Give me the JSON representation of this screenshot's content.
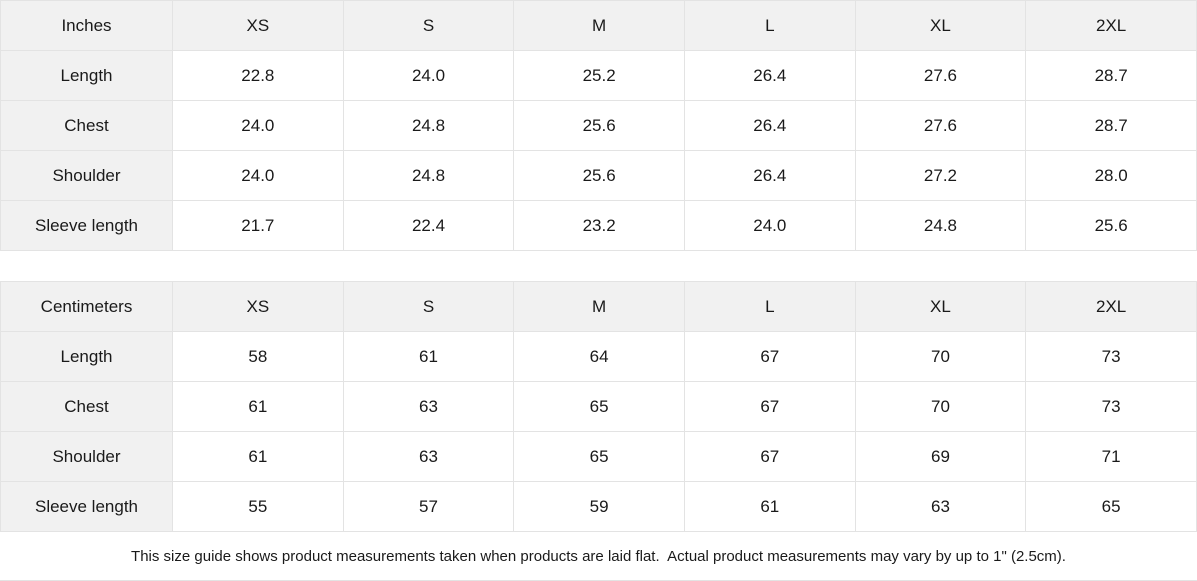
{
  "colors": {
    "header_bg": "#f1f1f1",
    "border": "#e3e3e3",
    "text": "#1a1a1a",
    "background": "#ffffff"
  },
  "size_guide": {
    "tables": [
      {
        "unit": "Inches",
        "sizes": [
          "XS",
          "S",
          "M",
          "L",
          "XL",
          "2XL"
        ],
        "rows": [
          {
            "label": "Length",
            "values": [
              "22.8",
              "24.0",
              "25.2",
              "26.4",
              "27.6",
              "28.7"
            ]
          },
          {
            "label": "Chest",
            "values": [
              "24.0",
              "24.8",
              "25.6",
              "26.4",
              "27.6",
              "28.7"
            ]
          },
          {
            "label": "Shoulder",
            "values": [
              "24.0",
              "24.8",
              "25.6",
              "26.4",
              "27.2",
              "28.0"
            ]
          },
          {
            "label": "Sleeve length",
            "values": [
              "21.7",
              "22.4",
              "23.2",
              "24.0",
              "24.8",
              "25.6"
            ]
          }
        ]
      },
      {
        "unit": "Centimeters",
        "sizes": [
          "XS",
          "S",
          "M",
          "L",
          "XL",
          "2XL"
        ],
        "rows": [
          {
            "label": "Length",
            "values": [
              "58",
              "61",
              "64",
              "67",
              "70",
              "73"
            ]
          },
          {
            "label": "Chest",
            "values": [
              "61",
              "63",
              "65",
              "67",
              "70",
              "73"
            ]
          },
          {
            "label": "Shoulder",
            "values": [
              "61",
              "63",
              "65",
              "67",
              "69",
              "71"
            ]
          },
          {
            "label": "Sleeve length",
            "values": [
              "55",
              "57",
              "59",
              "61",
              "63",
              "65"
            ]
          }
        ]
      }
    ],
    "note": "This size guide shows product measurements taken when products are laid flat.  Actual product measurements may vary by up to 1\" (2.5cm)."
  }
}
